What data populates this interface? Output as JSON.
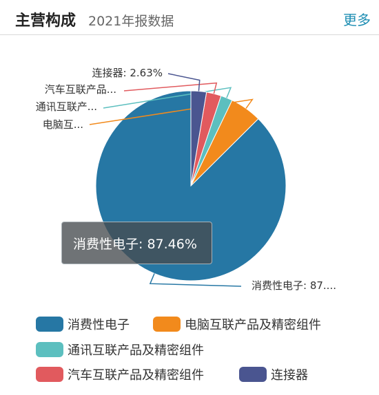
{
  "header": {
    "title": "主营构成",
    "subtitle": "2021年报数据",
    "more_label": "更多"
  },
  "tooltip": {
    "text": "消费性电子: 87.46%"
  },
  "chart_data": {
    "type": "pie",
    "unit": "%",
    "slices": [
      {
        "name": "消费性电子",
        "value": 87.46,
        "color": "#2677a4",
        "label": "消费性电子: 87...."
      },
      {
        "name": "电脑互联产品及精密组件",
        "value": 5.4,
        "color": "#f28a1c",
        "label": "电脑互..."
      },
      {
        "name": "通讯互联产品及精密组件",
        "value": 2.0,
        "color": "#5cbfbf",
        "label": "通讯互联产..."
      },
      {
        "name": "汽车互联产品及精密组件",
        "value": 2.51,
        "color": "#e15a5e",
        "label": "汽车互联产品..."
      },
      {
        "name": "连接器",
        "value": 2.63,
        "color": "#4a5590",
        "label": "连接器: 2.63%"
      }
    ],
    "legend": [
      "消费性电子",
      "电脑互联产品及精密组件",
      "通讯互联产品及精密组件",
      "汽车互联产品及精密组件",
      "连接器"
    ],
    "legend_position": "bottom"
  }
}
